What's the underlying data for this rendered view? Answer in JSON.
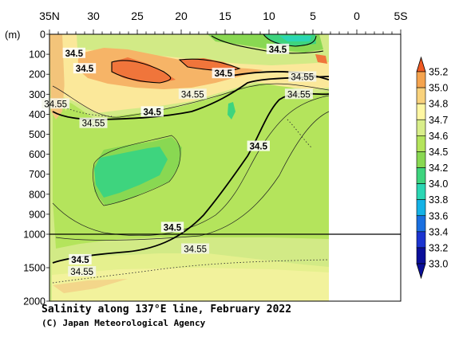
{
  "chart_data": {
    "type": "heatmap",
    "title": "Salinity along 137°E line, February 2022",
    "credit": "(C) Japan Meteorological Agency",
    "x_axis": {
      "ticks": [
        "35N",
        "30",
        "25",
        "20",
        "15",
        "10",
        "5",
        "0",
        "5S"
      ],
      "tick_values": [
        35,
        30,
        25,
        20,
        15,
        10,
        5,
        0,
        -5
      ],
      "range": [
        35,
        -5
      ]
    },
    "y_axis": {
      "unit_label": "(m)",
      "ticks_upper": [
        "0",
        "100",
        "200",
        "300",
        "400",
        "500",
        "600",
        "700",
        "800",
        "900",
        "1000"
      ],
      "ticks_upper_values": [
        0,
        100,
        200,
        300,
        400,
        500,
        600,
        700,
        800,
        900,
        1000
      ],
      "ticks_lower": [
        "1500",
        "2000"
      ],
      "ticks_lower_values": [
        1500,
        2000
      ],
      "range": [
        0,
        2000
      ],
      "scale_break_at": 1000
    },
    "colorbar": {
      "levels": [
        "35.2",
        "35.0",
        "34.8",
        "34.7",
        "34.6",
        "34.5",
        "34.2",
        "34.0",
        "33.8",
        "33.6",
        "33.4",
        "33.2",
        "33.0"
      ],
      "colors": [
        "#f05a23",
        "#f5a44f",
        "#f9d27c",
        "#fff7a3",
        "#d8ee8a",
        "#b4e45c",
        "#89d852",
        "#3ed47e",
        "#2bd6b4",
        "#14b2e6",
        "#1a6fe0",
        "#1b34d0",
        "#0a0f9a"
      ]
    },
    "contour_labels": [
      {
        "text": "34.5",
        "lat": 32.2,
        "depth": 95
      },
      {
        "text": "34.5",
        "lat": 31.0,
        "depth": 172
      },
      {
        "text": "34.5",
        "lat": 9.0,
        "depth": 75
      },
      {
        "text": "34.5",
        "lat": 15.2,
        "depth": 196
      },
      {
        "text": "34.5",
        "lat": 23.3,
        "depth": 388
      },
      {
        "text": "34.5",
        "lat": 11.2,
        "depth": 560
      },
      {
        "text": "34.5",
        "lat": 21.0,
        "depth": 966
      },
      {
        "text": "34.5",
        "lat": 31.5,
        "depth": 1380
      },
      {
        "text": "34.55",
        "lat": 34.3,
        "depth": 348
      },
      {
        "text": "34.55",
        "lat": 30.0,
        "depth": 445
      },
      {
        "text": "34.55",
        "lat": 18.7,
        "depth": 300
      },
      {
        "text": "34.55",
        "lat": 6.2,
        "depth": 213
      },
      {
        "text": "34.55",
        "lat": 6.6,
        "depth": 300
      },
      {
        "text": "34.55",
        "lat": 18.4,
        "depth": 1220
      },
      {
        "text": "34.55",
        "lat": 31.3,
        "depth": 1560
      }
    ]
  }
}
